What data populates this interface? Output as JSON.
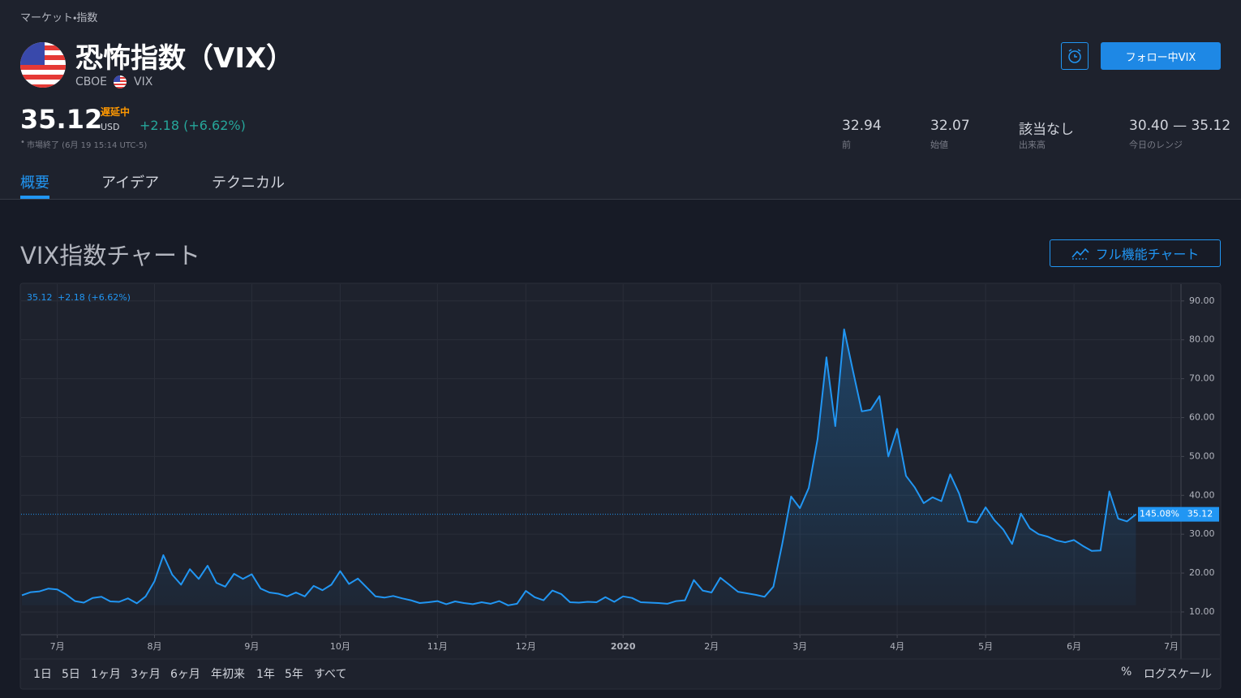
{
  "breadcrumb": "マーケット・指数",
  "header": {
    "title": "恐怖指数（VIX）",
    "exchange": "CBOE",
    "symbol": "VIX",
    "follow_button": "フォロー中VIX"
  },
  "quote": {
    "price": "35.12",
    "delayed": "遅延中",
    "currency": "USD",
    "change": "+2.18 (+6.62%)",
    "status": "市場終了 (6月 19 15:14 UTC-5)"
  },
  "stats": [
    {
      "value": "32.94",
      "label": "前"
    },
    {
      "value": "32.07",
      "label": "始値"
    },
    {
      "value": "該当なし",
      "label": "出来高"
    },
    {
      "value": "30.40 — 35.12",
      "label": "今日のレンジ"
    }
  ],
  "tabs": [
    "概要",
    "アイデア",
    "テクニカル"
  ],
  "section": {
    "title": "VIX指数チャート",
    "button": "フル機能チャート"
  },
  "chart_data": {
    "type": "area",
    "legend": {
      "price": "35.12",
      "change": "+2.18 (+6.62%)"
    },
    "color": "#2196f3",
    "categories": [
      null,
      null,
      null,
      null,
      "7月",
      null,
      null,
      null,
      null,
      null,
      null,
      null,
      null,
      null,
      null,
      "8月",
      null,
      null,
      null,
      null,
      null,
      null,
      null,
      null,
      null,
      null,
      "9月",
      null,
      null,
      null,
      null,
      null,
      null,
      null,
      null,
      null,
      "10月",
      null,
      null,
      null,
      null,
      null,
      null,
      null,
      null,
      null,
      null,
      "11月",
      null,
      null,
      null,
      null,
      null,
      null,
      null,
      null,
      null,
      "12月",
      null,
      null,
      null,
      null,
      null,
      null,
      null,
      null,
      null,
      null,
      "2020",
      null,
      null,
      null,
      null,
      null,
      null,
      null,
      null,
      null,
      "2月",
      null,
      null,
      null,
      null,
      null,
      null,
      null,
      null,
      null,
      "3月",
      null,
      null,
      null,
      null,
      null,
      null,
      null,
      null,
      null,
      null,
      "4月",
      null,
      null,
      null,
      null,
      null,
      null,
      null,
      null,
      null,
      "5月",
      null,
      null,
      null,
      null,
      null,
      null,
      null,
      null,
      null,
      "6月",
      null,
      null,
      null,
      null,
      null,
      null,
      null,
      null,
      null,
      null,
      "7月",
      null
    ],
    "values": [
      14.3,
      15.1,
      15.3,
      16.0,
      15.8,
      14.5,
      12.8,
      12.4,
      13.6,
      13.9,
      12.7,
      12.6,
      13.5,
      12.2,
      14.0,
      17.9,
      24.6,
      19.6,
      17.0,
      21.0,
      18.5,
      21.9,
      17.5,
      16.5,
      19.8,
      18.5,
      19.7,
      16.0,
      15.0,
      14.7,
      14.0,
      15.0,
      14.0,
      16.7,
      15.6,
      17.0,
      20.5,
      17.2,
      18.6,
      16.3,
      14.0,
      13.7,
      14.1,
      13.5,
      13.0,
      12.3,
      12.5,
      12.8,
      12.0,
      12.7,
      12.3,
      12.0,
      12.5,
      12.1,
      12.8,
      11.7,
      12.1,
      15.4,
      13.8,
      13.0,
      15.5,
      14.6,
      12.5,
      12.4,
      12.6,
      12.5,
      13.8,
      12.6,
      14.0,
      13.6,
      12.5,
      12.4,
      12.3,
      12.1,
      12.8,
      13.0,
      18.2,
      15.5,
      15.0,
      18.8,
      17.0,
      15.2,
      14.8,
      14.4,
      13.9,
      16.5,
      27.5,
      39.7,
      36.7,
      41.9,
      54.5,
      75.5,
      57.8,
      82.7,
      72.0,
      61.6,
      62.0,
      65.5,
      50.0,
      57.1,
      45.0,
      42.0,
      38.0,
      39.5,
      38.5,
      45.4,
      40.5,
      33.3,
      33.0,
      36.9,
      33.6,
      31.2,
      27.5,
      35.3,
      31.5,
      30.0,
      29.4,
      28.4,
      27.9,
      28.5,
      27.0,
      25.7,
      25.8,
      41.0,
      34.0,
      33.3,
      35.12,
      null,
      null,
      null,
      null,
      null
    ],
    "ylim": [
      4.15,
      94.34
    ],
    "yticks": [
      {
        "value": 10,
        "label": "10.00"
      },
      {
        "value": 20,
        "label": "20.00"
      },
      {
        "value": 30,
        "label": "30.00"
      },
      {
        "value": 40,
        "label": "40.00"
      },
      {
        "value": 50,
        "label": "50.00"
      },
      {
        "value": 60,
        "label": "60.00"
      },
      {
        "value": 70,
        "label": "70.00"
      },
      {
        "value": 80,
        "label": "80.00"
      },
      {
        "value": 90,
        "label": "90.00"
      }
    ],
    "grid": true,
    "price_line": {
      "value": 35.12,
      "label": "35.12",
      "percent_label": "145.08%"
    }
  },
  "ranges": [
    "1日",
    "5日",
    "1ヶ月",
    "3ヶ月",
    "6ヶ月",
    "年初来",
    "1年",
    "5年",
    "すべて"
  ],
  "scale_options": [
    "%",
    "ログスケール"
  ]
}
